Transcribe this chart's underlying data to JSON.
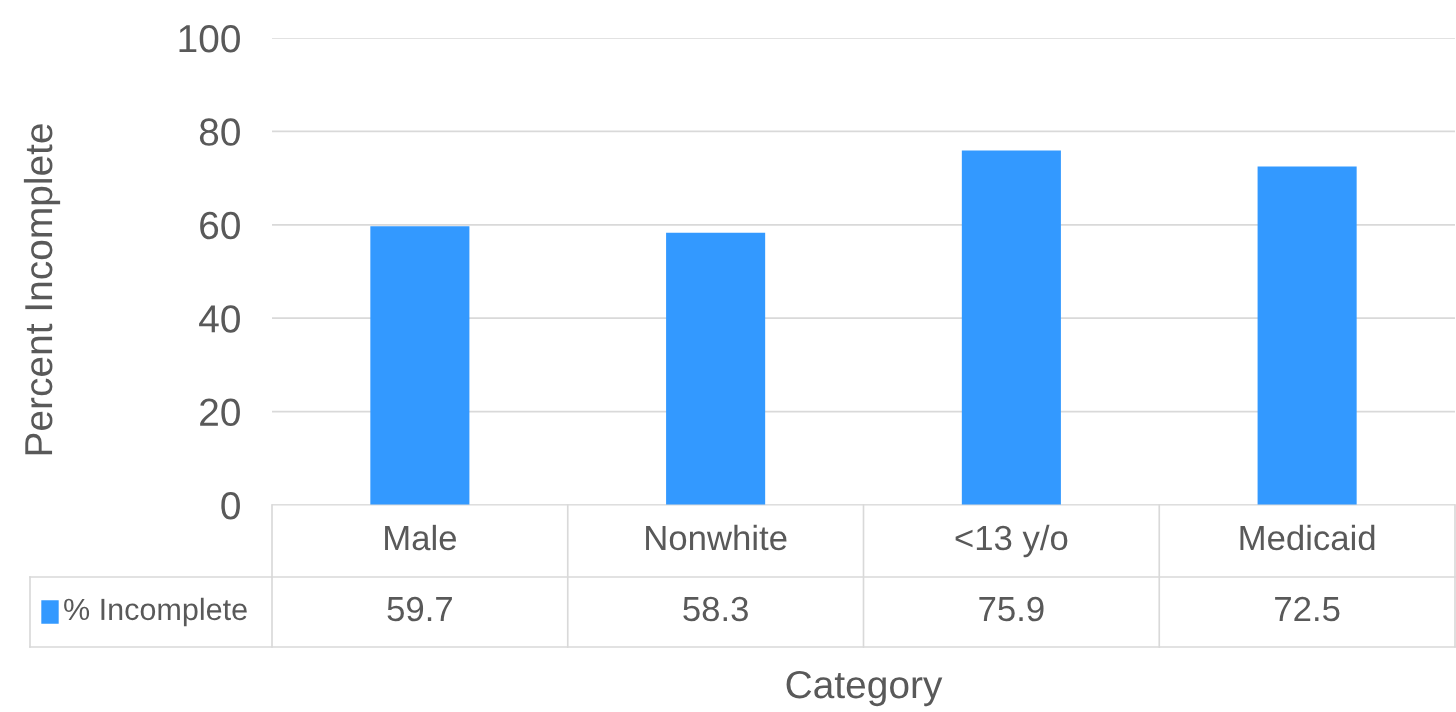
{
  "chart_data": {
    "type": "bar",
    "ylabel": "Percent Incomplete",
    "xlabel": "Category",
    "categories": [
      "Male",
      "Nonwhite",
      "<13 y/o",
      "Medicaid"
    ],
    "series": [
      {
        "name": "% Incomplete",
        "color": "#3399ff",
        "values": [
          59.7,
          58.3,
          75.9,
          72.5
        ]
      }
    ],
    "ylim": [
      0,
      100
    ],
    "yticks": [
      0,
      20,
      40,
      60,
      80,
      100
    ],
    "grid": "y",
    "legend": "bottom",
    "data_labels": true
  }
}
